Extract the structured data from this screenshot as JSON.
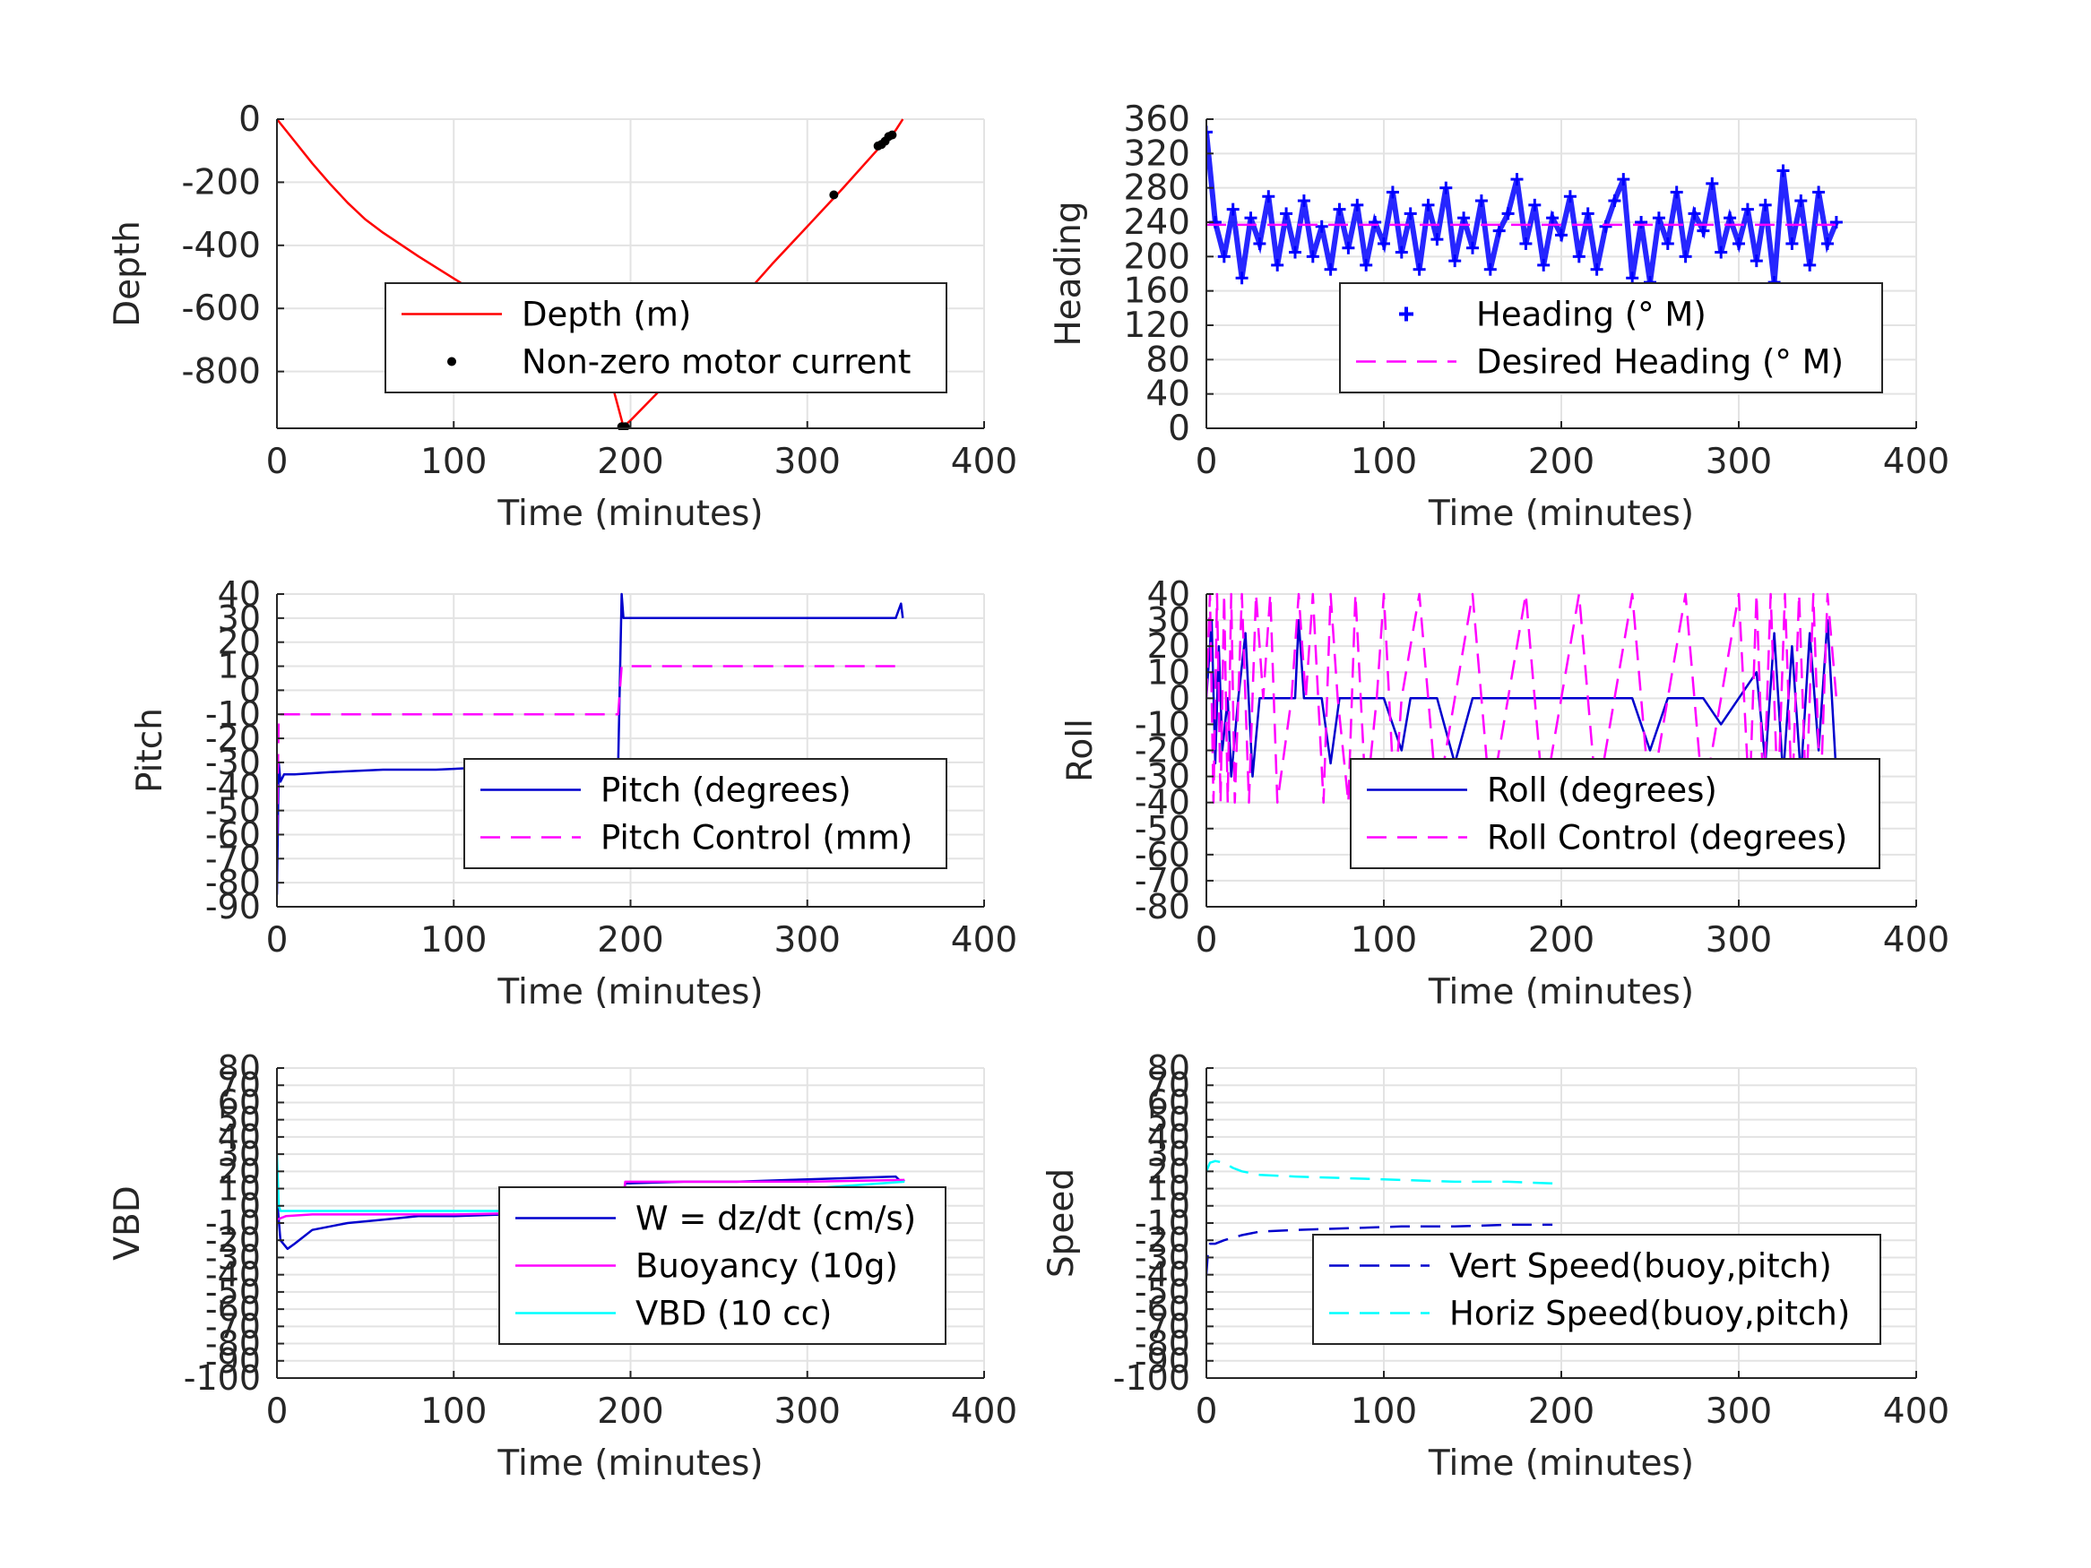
{
  "chart_data": [
    {
      "id": "depth",
      "type": "line",
      "xlabel": "Time (minutes)",
      "ylabel": "Depth",
      "xlim": [
        0,
        400
      ],
      "ylim": [
        -980,
        0
      ],
      "xticks": [
        0,
        100,
        200,
        300,
        400
      ],
      "xtick_labels": [
        "0",
        "100",
        "200",
        "300",
        "400"
      ],
      "yticks": [
        0,
        -200,
        -400,
        -600,
        -800
      ],
      "ytick_labels": [
        "0",
        "-200",
        "-400",
        "-600",
        "-800"
      ],
      "grid": true,
      "legend": "center-right",
      "series": [
        {
          "name": "Depth (m)",
          "kind": "line",
          "color": "#ff0000",
          "dash": "solid",
          "x": [
            0,
            10,
            20,
            30,
            40,
            50,
            60,
            80,
            100,
            120,
            140,
            160,
            180,
            190,
            196,
            200,
            220,
            250,
            280,
            300,
            320,
            340,
            350,
            354
          ],
          "y": [
            0,
            -70,
            -140,
            -205,
            -265,
            -318,
            -360,
            -435,
            -505,
            -575,
            -650,
            -730,
            -810,
            -850,
            -975,
            -955,
            -840,
            -650,
            -460,
            -340,
            -220,
            -95,
            -35,
            0
          ]
        },
        {
          "name": "Non-zero motor current",
          "kind": "points",
          "color": "#000000",
          "x": [
            195,
            197,
            315,
            340,
            342,
            344,
            346,
            348
          ],
          "y": [
            -975,
            -975,
            -240,
            -85,
            -80,
            -70,
            -55,
            -50
          ]
        }
      ]
    },
    {
      "id": "heading",
      "type": "scatter",
      "xlabel": "Time (minutes)",
      "ylabel": "Heading",
      "xlim": [
        0,
        400
      ],
      "ylim": [
        0,
        360
      ],
      "xticks": [
        0,
        100,
        200,
        300,
        400
      ],
      "xtick_labels": [
        "0",
        "100",
        "200",
        "300",
        "400"
      ],
      "yticks": [
        0,
        40,
        80,
        120,
        160,
        200,
        240,
        280,
        320,
        360
      ],
      "ytick_labels": [
        "0",
        "40",
        "80",
        "120",
        "160",
        "200",
        "240",
        "280",
        "320",
        "360"
      ],
      "grid": true,
      "legend": "lower-right",
      "series": [
        {
          "name": "Heading (° M)",
          "kind": "plus",
          "color": "#0000ff",
          "x": [
            0,
            5,
            10,
            15,
            20,
            25,
            30,
            35,
            40,
            45,
            50,
            55,
            60,
            65,
            70,
            75,
            80,
            85,
            90,
            95,
            100,
            105,
            110,
            115,
            120,
            125,
            130,
            135,
            140,
            145,
            150,
            155,
            160,
            165,
            170,
            175,
            180,
            185,
            190,
            195,
            200,
            205,
            210,
            215,
            220,
            225,
            230,
            235,
            240,
            245,
            250,
            255,
            260,
            265,
            270,
            275,
            280,
            285,
            290,
            295,
            300,
            305,
            310,
            315,
            320,
            325,
            330,
            335,
            340,
            345,
            350,
            355
          ],
          "y": [
            345,
            240,
            200,
            255,
            175,
            245,
            215,
            270,
            190,
            250,
            205,
            265,
            200,
            235,
            185,
            255,
            210,
            260,
            190,
            240,
            215,
            275,
            205,
            250,
            185,
            260,
            220,
            280,
            195,
            245,
            210,
            265,
            185,
            230,
            250,
            290,
            215,
            260,
            190,
            245,
            225,
            270,
            200,
            250,
            185,
            235,
            265,
            290,
            175,
            240,
            170,
            245,
            215,
            275,
            200,
            250,
            230,
            285,
            205,
            245,
            215,
            255,
            195,
            260,
            170,
            300,
            215,
            265,
            190,
            275,
            215,
            240
          ]
        },
        {
          "name": "Desired Heading (° M)",
          "kind": "line",
          "color": "#ff00ff",
          "dash": "dashed",
          "x": [
            0,
            355
          ],
          "y": [
            237,
            237
          ]
        }
      ]
    },
    {
      "id": "pitch",
      "type": "line",
      "xlabel": "Time (minutes)",
      "ylabel": "Pitch",
      "xlim": [
        0,
        400
      ],
      "ylim": [
        -90,
        40
      ],
      "xticks": [
        0,
        100,
        200,
        300,
        400
      ],
      "xtick_labels": [
        "0",
        "100",
        "200",
        "300",
        "400"
      ],
      "yticks": [
        40,
        30,
        20,
        10,
        0,
        -10,
        -20,
        -30,
        -40,
        -50,
        -60,
        -70,
        -80,
        -90
      ],
      "ytick_labels": [
        "40",
        "30",
        "20",
        "10",
        "0",
        "-10",
        "-20",
        "-30",
        "-40",
        "-50",
        "-60",
        "-70",
        "-80",
        "-90"
      ],
      "grid": true,
      "legend": "center-right",
      "series": [
        {
          "name": "Pitch (degrees)",
          "kind": "line",
          "color": "#0000cd",
          "dash": "solid",
          "x": [
            0,
            1,
            2,
            4,
            10,
            30,
            60,
            90,
            120,
            150,
            180,
            193,
            195,
            196,
            200,
            230,
            260,
            290,
            320,
            350,
            353,
            354
          ],
          "y": [
            -85,
            -30,
            -38,
            -35,
            -35,
            -34,
            -33,
            -33,
            -32,
            -32,
            -31,
            -31,
            40,
            30,
            30,
            30,
            30,
            30,
            30,
            30,
            36,
            30
          ]
        },
        {
          "name": "Pitch Control (mm)",
          "kind": "line",
          "color": "#ff00ff",
          "dash": "dashed",
          "x": [
            0,
            1,
            5,
            50,
            100,
            150,
            193,
            195,
            200,
            250,
            300,
            350,
            354
          ],
          "y": [
            -60,
            -10,
            -10,
            -10,
            -10,
            -10,
            -10,
            10,
            10,
            10,
            10,
            10,
            10
          ]
        }
      ]
    },
    {
      "id": "roll",
      "type": "line",
      "xlabel": "Time (minutes)",
      "ylabel": "Roll",
      "xlim": [
        0,
        400
      ],
      "ylim": [
        -80,
        40
      ],
      "xticks": [
        0,
        100,
        200,
        300,
        400
      ],
      "xtick_labels": [
        "0",
        "100",
        "200",
        "300",
        "400"
      ],
      "yticks": [
        40,
        30,
        20,
        10,
        0,
        -10,
        -20,
        -30,
        -40,
        -50,
        -60,
        -70,
        -80
      ],
      "ytick_labels": [
        "40",
        "30",
        "20",
        "10",
        "0",
        "-10",
        "-20",
        "-30",
        "-40",
        "-50",
        "-60",
        "-70",
        "-80"
      ],
      "grid": true,
      "legend": "center-right",
      "series": [
        {
          "name": "Roll (degrees)",
          "kind": "line",
          "color": "#0000cd",
          "dash": "solid",
          "x": [
            0,
            3,
            5,
            7,
            9,
            12,
            14,
            18,
            22,
            26,
            30,
            35,
            40,
            45,
            50,
            52,
            55,
            60,
            65,
            70,
            75,
            80,
            90,
            95,
            100,
            110,
            115,
            120,
            130,
            140,
            150,
            160,
            170,
            180,
            190,
            200,
            210,
            220,
            230,
            240,
            250,
            260,
            270,
            280,
            290,
            300,
            310,
            315,
            320,
            325,
            330,
            335,
            340,
            345,
            350,
            355
          ],
          "y": [
            0,
            30,
            -25,
            20,
            -20,
            0,
            -30,
            0,
            25,
            -30,
            0,
            0,
            0,
            0,
            0,
            30,
            0,
            0,
            0,
            -25,
            0,
            0,
            0,
            0,
            0,
            -20,
            0,
            0,
            0,
            -25,
            0,
            0,
            0,
            0,
            0,
            0,
            0,
            0,
            0,
            0,
            -20,
            0,
            0,
            0,
            -10,
            0,
            10,
            -25,
            25,
            -30,
            20,
            -30,
            25,
            -20,
            30,
            -30
          ]
        },
        {
          "name": "Roll Control (degrees)",
          "kind": "line",
          "color": "#ff00ff",
          "dash": "dashed",
          "x": [
            0,
            2,
            4,
            6,
            8,
            10,
            12,
            14,
            16,
            20,
            24,
            28,
            32,
            36,
            40,
            48,
            52,
            56,
            60,
            66,
            70,
            74,
            80,
            84,
            90,
            96,
            100,
            106,
            110,
            120,
            130,
            140,
            150,
            160,
            170,
            180,
            190,
            200,
            210,
            220,
            230,
            240,
            250,
            260,
            270,
            280,
            290,
            300,
            306,
            310,
            314,
            318,
            322,
            326,
            330,
            334,
            338,
            342,
            346,
            350,
            355
          ],
          "y": [
            0,
            40,
            -40,
            40,
            -40,
            40,
            -40,
            40,
            -40,
            40,
            -40,
            40,
            0,
            40,
            -40,
            0,
            40,
            0,
            40,
            -40,
            40,
            0,
            -40,
            40,
            -40,
            0,
            40,
            -40,
            0,
            40,
            -40,
            0,
            40,
            -40,
            0,
            40,
            -40,
            0,
            40,
            -40,
            0,
            40,
            -40,
            0,
            40,
            -40,
            0,
            40,
            -40,
            40,
            -40,
            40,
            -40,
            40,
            -40,
            40,
            -40,
            40,
            -40,
            40,
            0
          ]
        }
      ]
    },
    {
      "id": "vbd",
      "type": "line",
      "xlabel": "Time (minutes)",
      "ylabel": "VBD",
      "xlim": [
        0,
        400
      ],
      "ylim": [
        -100,
        80
      ],
      "xticks": [
        0,
        100,
        200,
        300,
        400
      ],
      "xtick_labels": [
        "0",
        "100",
        "200",
        "300",
        "400"
      ],
      "yticks": [
        80,
        70,
        60,
        50,
        40,
        30,
        20,
        10,
        0,
        -10,
        -20,
        -30,
        -40,
        -50,
        -60,
        -70,
        -80,
        -90,
        -100
      ],
      "ytick_labels": [
        "80",
        "70",
        "60",
        "50",
        "40",
        "30",
        "20",
        "10",
        "0",
        "-10",
        "-20",
        "-30",
        "-40",
        "-50",
        "-60",
        "-70",
        "-80",
        "-90",
        "-100"
      ],
      "grid": true,
      "legend": "center-right",
      "series": [
        {
          "name": "W = dz/dt (cm/s)",
          "kind": "line",
          "color": "#0000cd",
          "dash": "solid",
          "x": [
            0,
            2,
            6,
            10,
            15,
            20,
            30,
            40,
            60,
            80,
            100,
            130,
            160,
            190,
            195,
            197,
            230,
            260,
            290,
            320,
            350,
            353,
            355
          ],
          "y": [
            5,
            -20,
            -25,
            -22,
            -18,
            -14,
            -12,
            -10,
            -8,
            -6,
            -6,
            -5,
            -5,
            -4,
            -4,
            13,
            14,
            14,
            15,
            16,
            17,
            14,
            15
          ]
        },
        {
          "name": "Buoyancy (10g)",
          "kind": "line",
          "color": "#ff00ff",
          "dash": "solid",
          "x": [
            0,
            5,
            20,
            50,
            100,
            150,
            195,
            197,
            250,
            300,
            355
          ],
          "y": [
            -8,
            -6,
            -5,
            -5,
            -5,
            -4,
            -4,
            14,
            14,
            14,
            15
          ]
        },
        {
          "name": "VBD (10 cc)",
          "kind": "line",
          "color": "#00ffff",
          "dash": "solid",
          "x": [
            0,
            1,
            2,
            5,
            20,
            60,
            100,
            150,
            195,
            197,
            250,
            300,
            355
          ],
          "y": [
            30,
            0,
            -3,
            -3,
            -3,
            -3,
            -3,
            -3,
            -3,
            8,
            8,
            10,
            14
          ]
        }
      ]
    },
    {
      "id": "speed",
      "type": "line",
      "xlabel": "Time (minutes)",
      "ylabel": "Speed",
      "xlim": [
        0,
        400
      ],
      "ylim": [
        -100,
        80
      ],
      "xticks": [
        0,
        100,
        200,
        300,
        400
      ],
      "xtick_labels": [
        "0",
        "100",
        "200",
        "300",
        "400"
      ],
      "yticks": [
        80,
        70,
        60,
        50,
        40,
        30,
        20,
        10,
        0,
        -10,
        -20,
        -30,
        -40,
        -50,
        -60,
        -70,
        -80,
        -90,
        -100
      ],
      "ytick_labels": [
        "80",
        "70",
        "60",
        "50",
        "40",
        "30",
        "20",
        "10",
        "0",
        "-10",
        "-20",
        "-30",
        "-40",
        "-50",
        "-60",
        "-70",
        "-80",
        "-90",
        "-100"
      ],
      "grid": true,
      "legend": "lower-right",
      "series": [
        {
          "name": "Vert Speed(buoy,pitch)",
          "kind": "line",
          "color": "#0000cd",
          "dash": "dashed",
          "x": [
            0,
            1,
            2,
            5,
            10,
            20,
            30,
            50,
            80,
            110,
            140,
            170,
            195
          ],
          "y": [
            -40,
            -25,
            -22,
            -22,
            -20,
            -17,
            -15,
            -14,
            -13,
            -12,
            -12,
            -11,
            -11
          ]
        },
        {
          "name": "Horiz Speed(buoy,pitch)",
          "kind": "line",
          "color": "#00ffff",
          "dash": "dashed",
          "x": [
            0,
            2,
            5,
            10,
            15,
            20,
            30,
            50,
            80,
            110,
            140,
            170,
            195
          ],
          "y": [
            20,
            25,
            26,
            25,
            22,
            20,
            18,
            17,
            16,
            15,
            14,
            14,
            13
          ]
        }
      ]
    }
  ]
}
